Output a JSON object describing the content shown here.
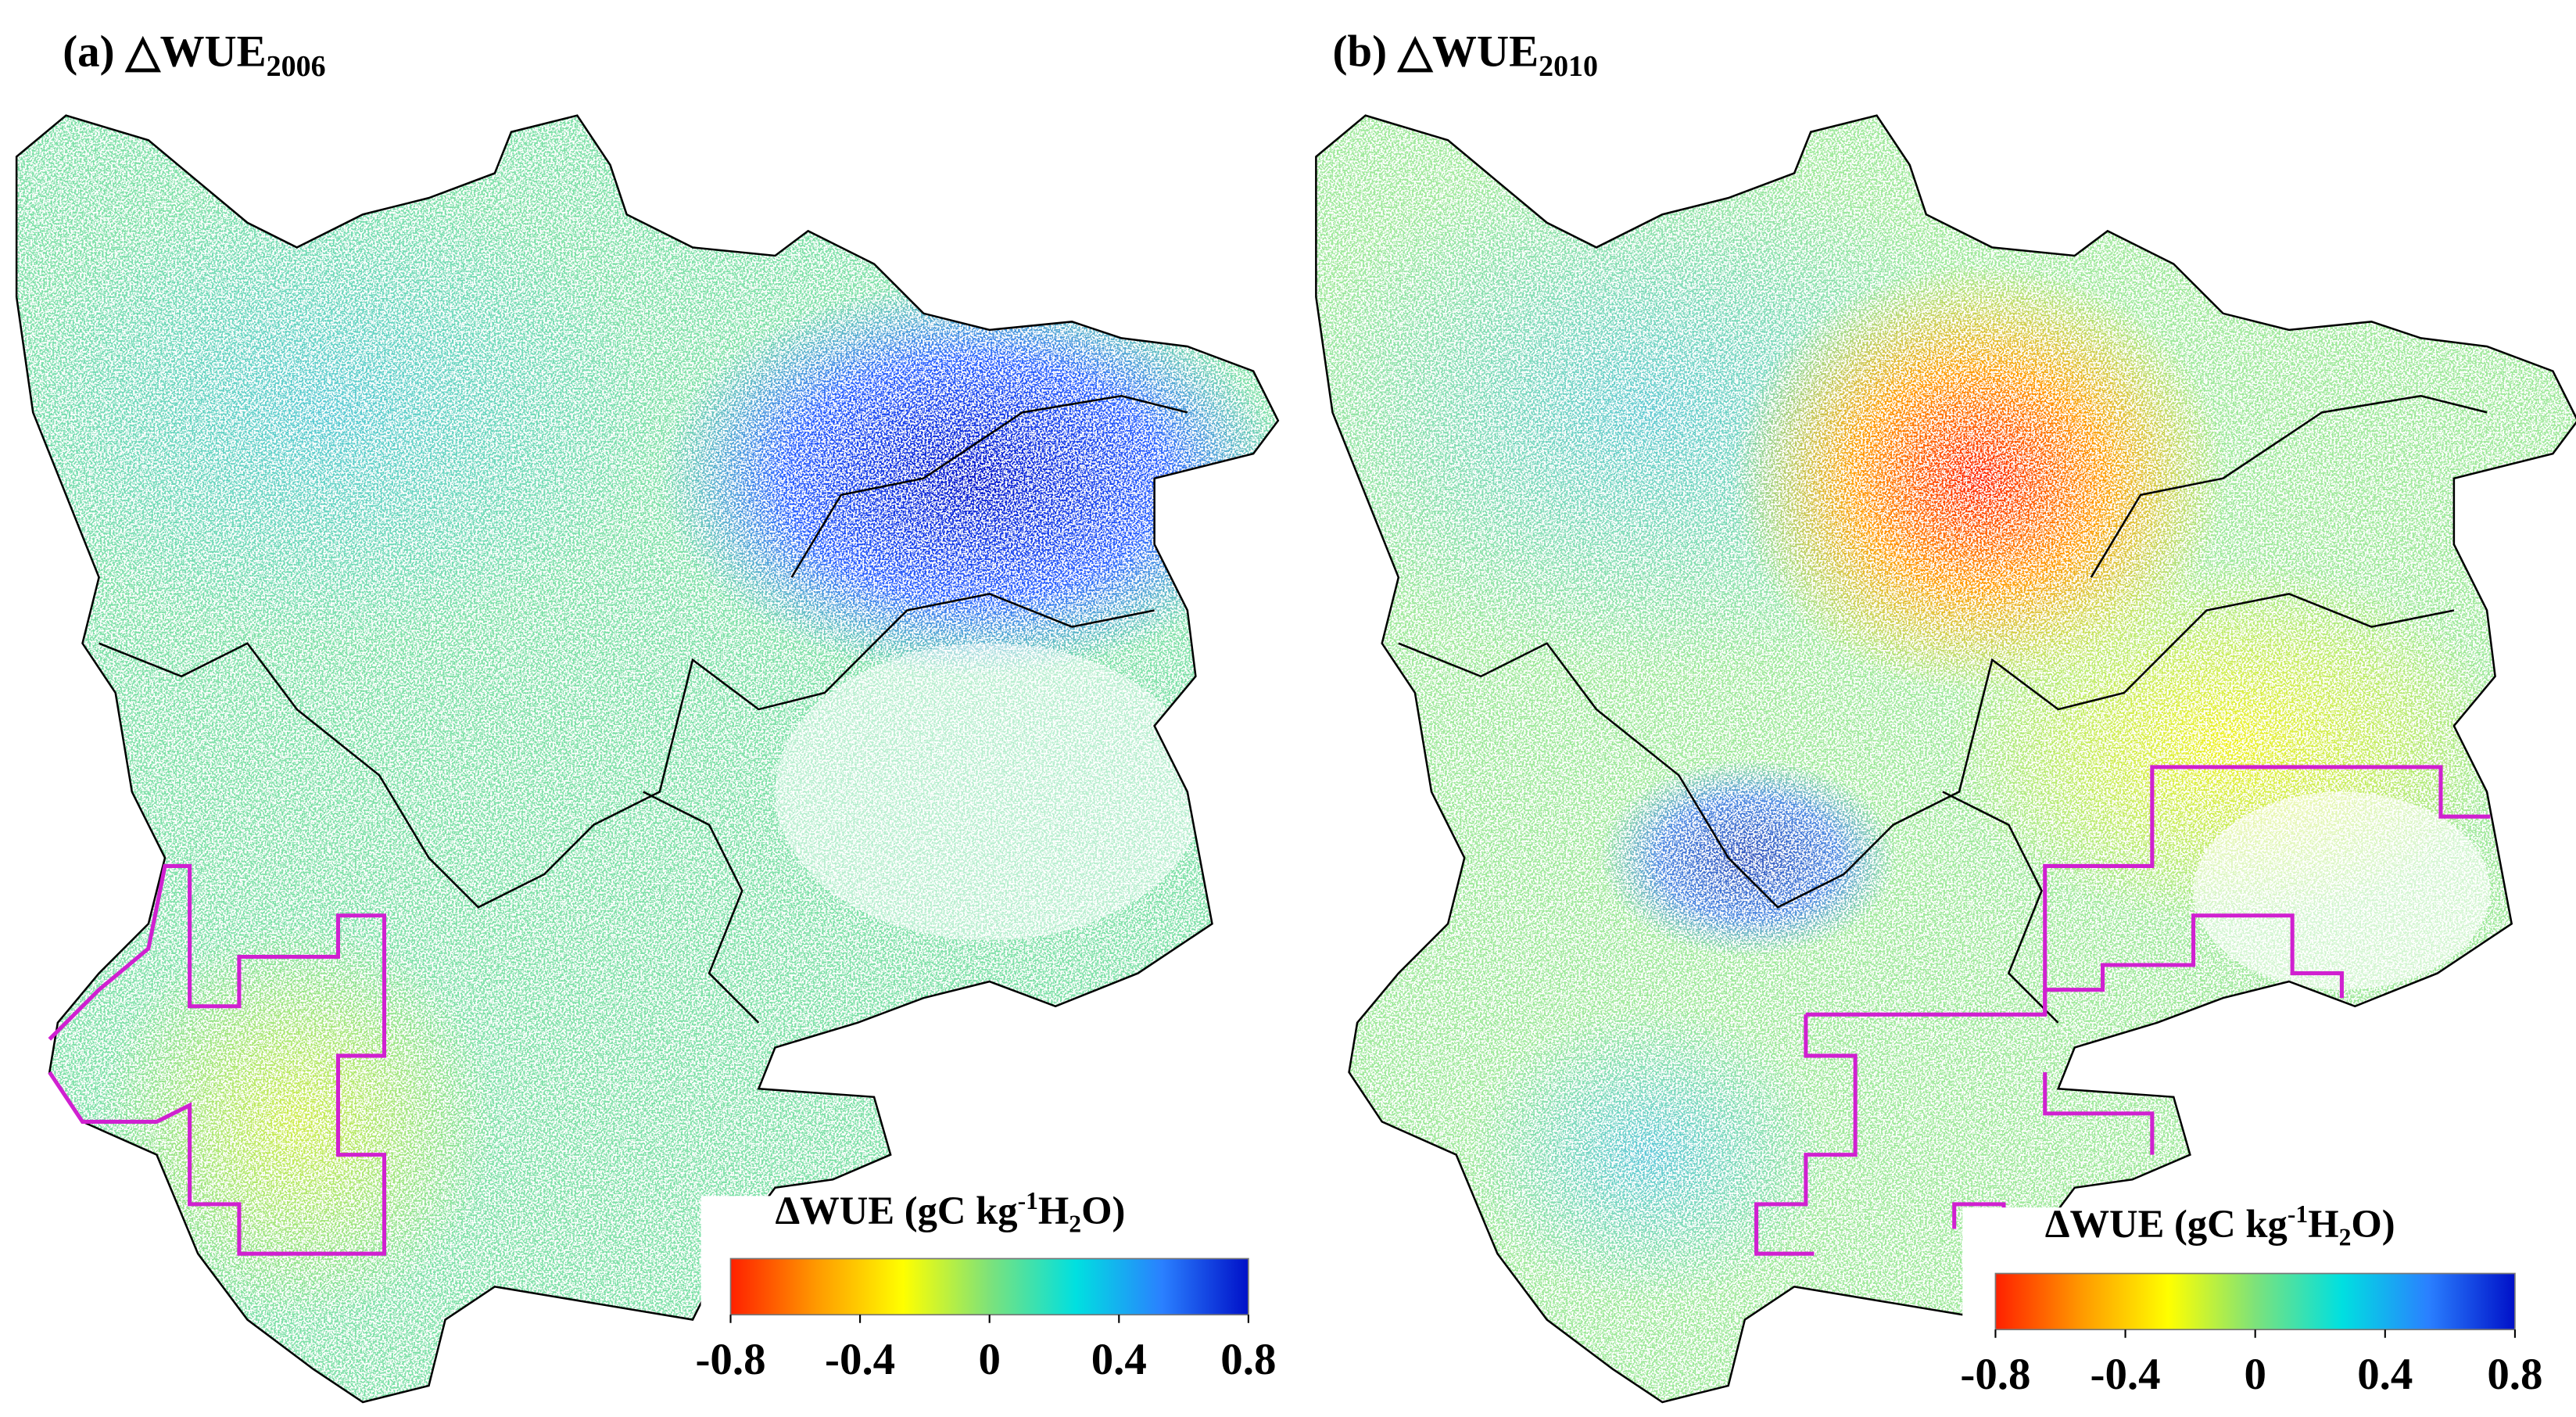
{
  "panels": [
    {
      "title": "(a) △WUE",
      "subscript": "2006",
      "colorbar": {
        "title": "ΔWUE (gC kg",
        "sup": "-1",
        "after_sup": "H",
        "sub": "2",
        "end": "O)",
        "range": [
          -0.8,
          0.8
        ],
        "ticks": [
          -0.8,
          -0.4,
          0,
          0.4,
          0.8
        ],
        "colors": [
          "#ff2000",
          "#ff9a00",
          "#ffff00",
          "#7de27a",
          "#00e0e0",
          "#2a80ff",
          "#0010c8"
        ]
      }
    },
    {
      "title": "(b) △WUE",
      "subscript": "2010",
      "colorbar": {
        "title": "ΔWUE (gC kg",
        "sup": "-1",
        "after_sup": "H",
        "sub": "2",
        "end": "O)",
        "range": [
          -0.8,
          0.8
        ],
        "ticks": [
          -0.8,
          -0.4,
          0,
          0.4,
          0.8
        ],
        "colors": [
          "#ff2000",
          "#ff9a00",
          "#ffff00",
          "#7de27a",
          "#00e0e0",
          "#2a80ff",
          "#0010c8"
        ]
      }
    }
  ]
}
